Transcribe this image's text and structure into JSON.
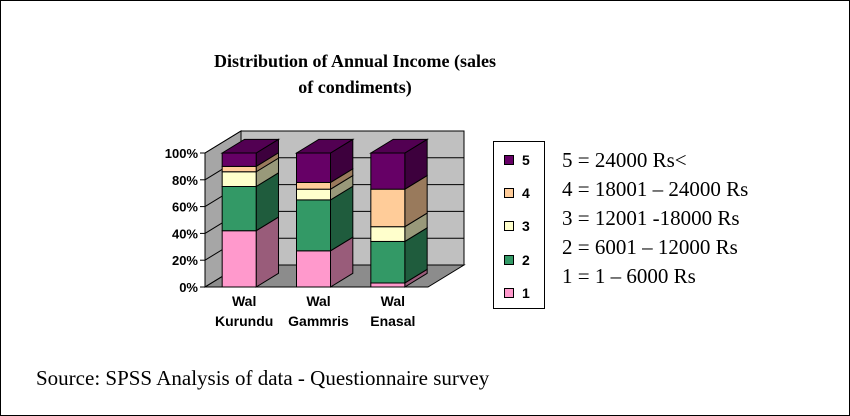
{
  "chart_data": {
    "type": "bar",
    "stacked": true,
    "percent": true,
    "three_d": true,
    "title": "Distribution of Annual Income  (sales of condiments)",
    "title_lines": [
      "Distribution of Annual Income  (sales",
      "of condiments)"
    ],
    "categories": [
      [
        "Wal",
        "Kurundu"
      ],
      [
        "Wal",
        "Gammris"
      ],
      [
        "Wal",
        "Enasal"
      ]
    ],
    "y_ticks": [
      "0%",
      "20%",
      "40%",
      "60%",
      "80%",
      "100%"
    ],
    "ylim": [
      0,
      100
    ],
    "grid": true,
    "legend_position": "right",
    "series": [
      {
        "name": "1",
        "color": "#ff99cc",
        "values": [
          42,
          27,
          3
        ]
      },
      {
        "name": "2",
        "color": "#339966",
        "values": [
          33,
          38,
          31
        ]
      },
      {
        "name": "3",
        "color": "#ffffcc",
        "values": [
          11,
          8,
          11
        ]
      },
      {
        "name": "4",
        "color": "#ffcc99",
        "values": [
          4,
          5,
          28
        ]
      },
      {
        "name": "5",
        "color": "#660066",
        "values": [
          10,
          22,
          27
        ]
      }
    ]
  },
  "legend_items": [
    "5",
    "4",
    "3",
    "2",
    "1"
  ],
  "ranges": [
    "5 = 24000 Rs<",
    "4 = 18001 – 24000 Rs",
    "3 = 12001 -18000 Rs",
    "2 = 6001 – 12000 Rs",
    "1 = 1 – 6000 Rs"
  ],
  "source": "Source: SPSS Analysis of data - Questionnaire survey"
}
